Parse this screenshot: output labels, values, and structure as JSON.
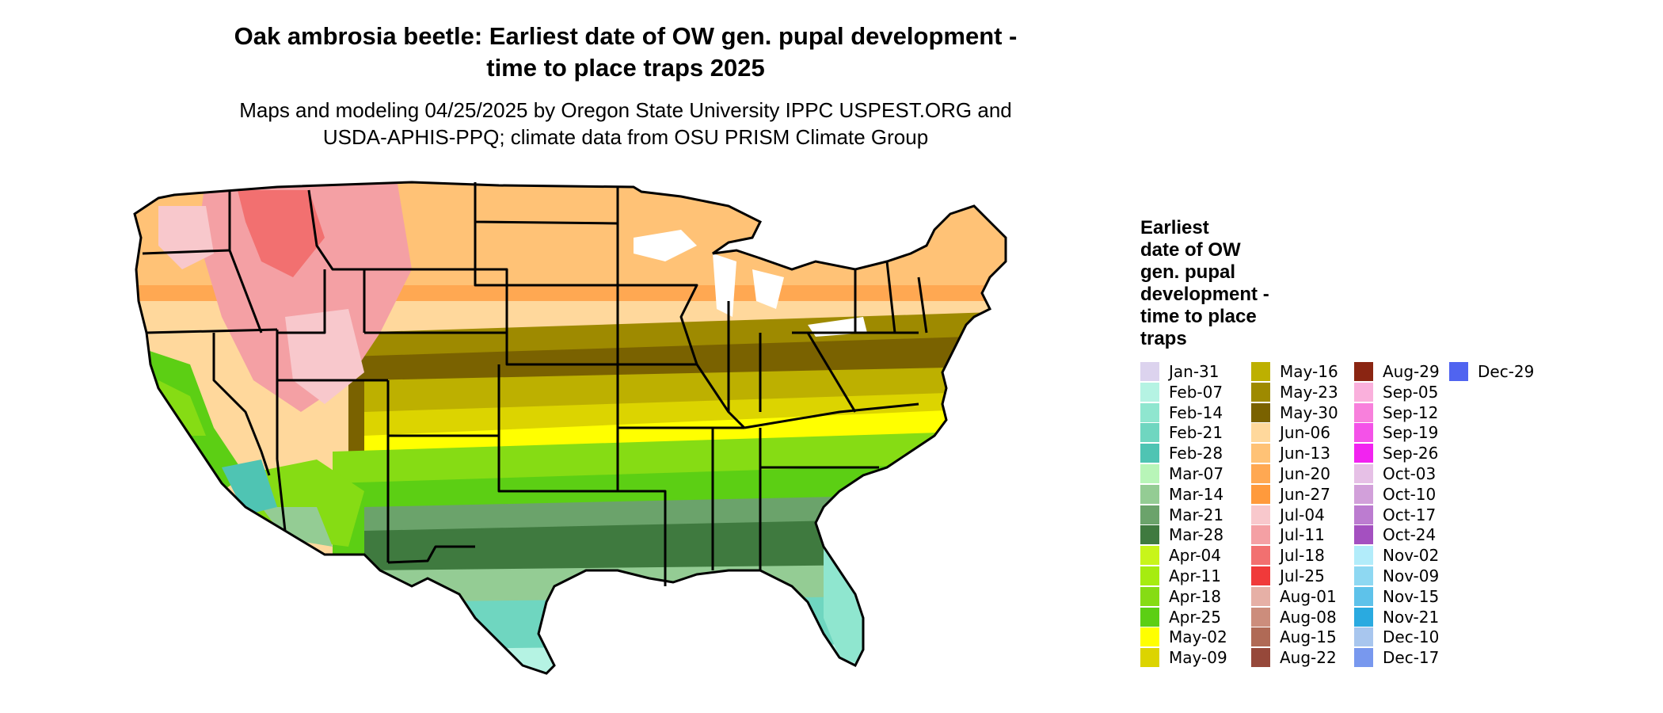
{
  "title": {
    "line1": "Oak ambrosia beetle: Earliest date of OW gen. pupal development -",
    "line2": "time to place traps 2025"
  },
  "subtitle": {
    "line1": "Maps and modeling 04/25/2025 by Oregon State University IPPC USPEST.ORG and",
    "line2": "USDA-APHIS-PPQ; climate data from OSU PRISM Climate Group"
  },
  "legend": {
    "title_lines": [
      "Earliest",
      "date of OW",
      "gen. pupal",
      "development -",
      "time to place",
      "traps"
    ],
    "columns": [
      [
        {
          "label": "Jan-31",
          "color": "#dcd3ee"
        },
        {
          "label": "Feb-07",
          "color": "#b5f3e3"
        },
        {
          "label": "Feb-14",
          "color": "#8fe6cf"
        },
        {
          "label": "Feb-21",
          "color": "#6fd6c0"
        },
        {
          "label": "Feb-28",
          "color": "#4fc4b3"
        },
        {
          "label": "Mar-07",
          "color": "#b8f5b8"
        },
        {
          "label": "Mar-14",
          "color": "#94cc94"
        },
        {
          "label": "Mar-21",
          "color": "#6ba36b"
        },
        {
          "label": "Mar-28",
          "color": "#3f7a3f"
        },
        {
          "label": "Apr-04",
          "color": "#c8f51a"
        },
        {
          "label": "Apr-11",
          "color": "#a6ec10"
        },
        {
          "label": "Apr-18",
          "color": "#86dc14"
        },
        {
          "label": "Apr-25",
          "color": "#5ccf14"
        },
        {
          "label": "May-02",
          "color": "#ffff00"
        },
        {
          "label": "May-09",
          "color": "#dcd400"
        }
      ],
      [
        {
          "label": "May-16",
          "color": "#bdb000"
        },
        {
          "label": "May-23",
          "color": "#9e8a00"
        },
        {
          "label": "May-30",
          "color": "#7a6200"
        },
        {
          "label": "Jun-06",
          "color": "#ffd89c"
        },
        {
          "label": "Jun-13",
          "color": "#ffc276"
        },
        {
          "label": "Jun-20",
          "color": "#ffa852"
        },
        {
          "label": "Jun-27",
          "color": "#ff9a3c"
        },
        {
          "label": "Jul-04",
          "color": "#f8c8cc"
        },
        {
          "label": "Jul-11",
          "color": "#f4a0a4"
        },
        {
          "label": "Jul-18",
          "color": "#f27070"
        },
        {
          "label": "Jul-25",
          "color": "#f03a3a"
        },
        {
          "label": "Aug-01",
          "color": "#e6b0a6"
        },
        {
          "label": "Aug-08",
          "color": "#cc8d7c"
        },
        {
          "label": "Aug-15",
          "color": "#b06a56"
        },
        {
          "label": "Aug-22",
          "color": "#96483a"
        }
      ],
      [
        {
          "label": "Aug-29",
          "color": "#8a2512"
        },
        {
          "label": "Sep-05",
          "color": "#fab0dc"
        },
        {
          "label": "Sep-12",
          "color": "#f880dc"
        },
        {
          "label": "Sep-19",
          "color": "#f452e8"
        },
        {
          "label": "Sep-26",
          "color": "#f223f0"
        },
        {
          "label": "Oct-03",
          "color": "#e6c0e6"
        },
        {
          "label": "Oct-10",
          "color": "#d2a0da"
        },
        {
          "label": "Oct-17",
          "color": "#bc7cd0"
        },
        {
          "label": "Oct-24",
          "color": "#a450c0"
        },
        {
          "label": "Nov-02",
          "color": "#b2ecfa"
        },
        {
          "label": "Nov-09",
          "color": "#8ed8f2"
        },
        {
          "label": "Nov-15",
          "color": "#5ec2ea"
        },
        {
          "label": "Nov-21",
          "color": "#2aaae0"
        },
        {
          "label": "Dec-10",
          "color": "#a8c6ee"
        },
        {
          "label": "Dec-17",
          "color": "#7898ee"
        }
      ],
      [
        {
          "label": "Dec-29",
          "color": "#5064f0"
        }
      ]
    ]
  }
}
